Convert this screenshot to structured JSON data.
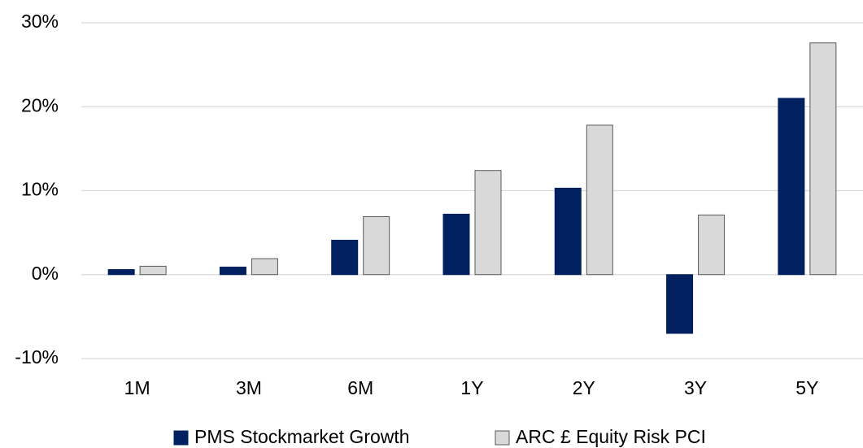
{
  "chart_data": {
    "type": "bar",
    "categories": [
      "1M",
      "3M",
      "6M",
      "1Y",
      "2Y",
      "3Y",
      "5Y"
    ],
    "series": [
      {
        "name": "PMS Stockmarket Growth",
        "color": "#002060",
        "values": [
          0.6,
          0.9,
          4.1,
          7.2,
          10.3,
          -7.0,
          21.0
        ]
      },
      {
        "name": "ARC £ Equity Risk PCI",
        "color": "#d9d9d9",
        "values": [
          1.0,
          1.9,
          6.9,
          12.4,
          17.8,
          7.1,
          27.6
        ]
      }
    ],
    "ylim": [
      -10,
      30
    ],
    "yticks": [
      {
        "value": -10,
        "label": "-10%"
      },
      {
        "value": 0,
        "label": "0%"
      },
      {
        "value": 10,
        "label": "10%"
      },
      {
        "value": 20,
        "label": "20%"
      },
      {
        "value": 30,
        "label": "30%"
      }
    ],
    "grid": true,
    "legend": "bottom"
  }
}
